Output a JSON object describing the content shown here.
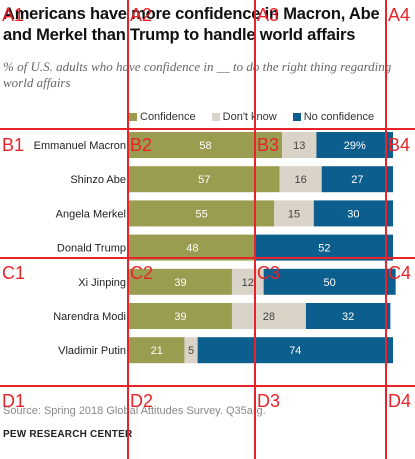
{
  "header": {
    "title": "Americans have more confidence in Macron, Abe and Merkel than Trump to handle world affairs",
    "subtitle": "% of U.S. adults who have confidence in __ to do the right thing regarding world affairs"
  },
  "footer": {
    "source": "Source: Spring 2018 Global Attitudes Survey. Q35a-g.",
    "brand": "PEW RESEARCH CENTER"
  },
  "colors": {
    "confidence": "#9a9c50",
    "dont_know": "#d9d4c7",
    "no_confidence": "#0c5e8e"
  },
  "chart_data": {
    "type": "bar",
    "orientation": "horizontal",
    "stacked": true,
    "categories": [
      "Emmanuel Macron",
      "Shinzo Abe",
      "Angela Merkel",
      "Donald Trump",
      "Xi Jinping",
      "Narendra Modi",
      "Vladimir Putin"
    ],
    "series": [
      {
        "name": "Confidence",
        "values": [
          58,
          57,
          55,
          48,
          39,
          39,
          21
        ],
        "labels": [
          "58",
          "57",
          "55",
          "48",
          "39",
          "39",
          "21"
        ]
      },
      {
        "name": "Don't know",
        "values": [
          13,
          16,
          15,
          0,
          12,
          28,
          5
        ],
        "labels": [
          "13",
          "16",
          "15",
          "",
          "12",
          "28",
          "5"
        ]
      },
      {
        "name": "No confidence",
        "values": [
          29,
          27,
          30,
          52,
          50,
          32,
          74
        ],
        "labels": [
          "29%",
          "27",
          "30",
          "52",
          "50",
          "32",
          "74"
        ]
      }
    ],
    "xlim": [
      0,
      100
    ],
    "legend_position": "top",
    "grid": false
  },
  "overlay": {
    "labels": [
      [
        "A1",
        "A2",
        "A3",
        "A4"
      ],
      [
        "B1",
        "B2",
        "B3",
        "B4"
      ],
      [
        "C1",
        "C2",
        "C3",
        "C4"
      ],
      [
        "D1",
        "D2",
        "D3",
        "D4"
      ]
    ]
  }
}
